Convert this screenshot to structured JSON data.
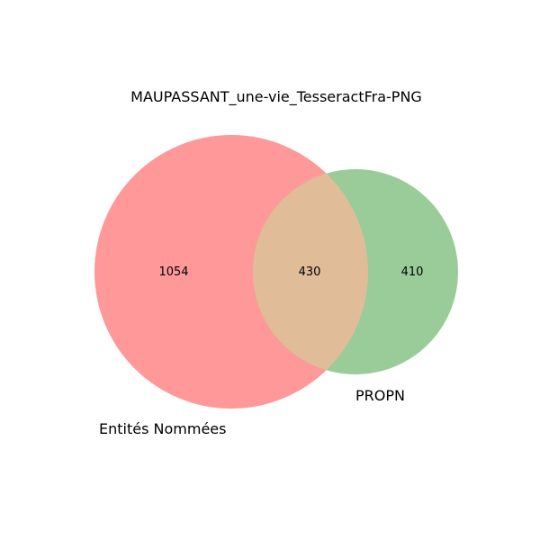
{
  "title": "MAUPASSANT_une-vie_TesseractFra-PNG",
  "sets": [
    {
      "label": "Entités Nommées",
      "color": "#ff9999"
    },
    {
      "label": "PROPN",
      "color": "#99cc99"
    }
  ],
  "intersection_color": "#e0bc99",
  "counts": {
    "left_only": "1054",
    "both": "430",
    "right_only": "410"
  }
}
